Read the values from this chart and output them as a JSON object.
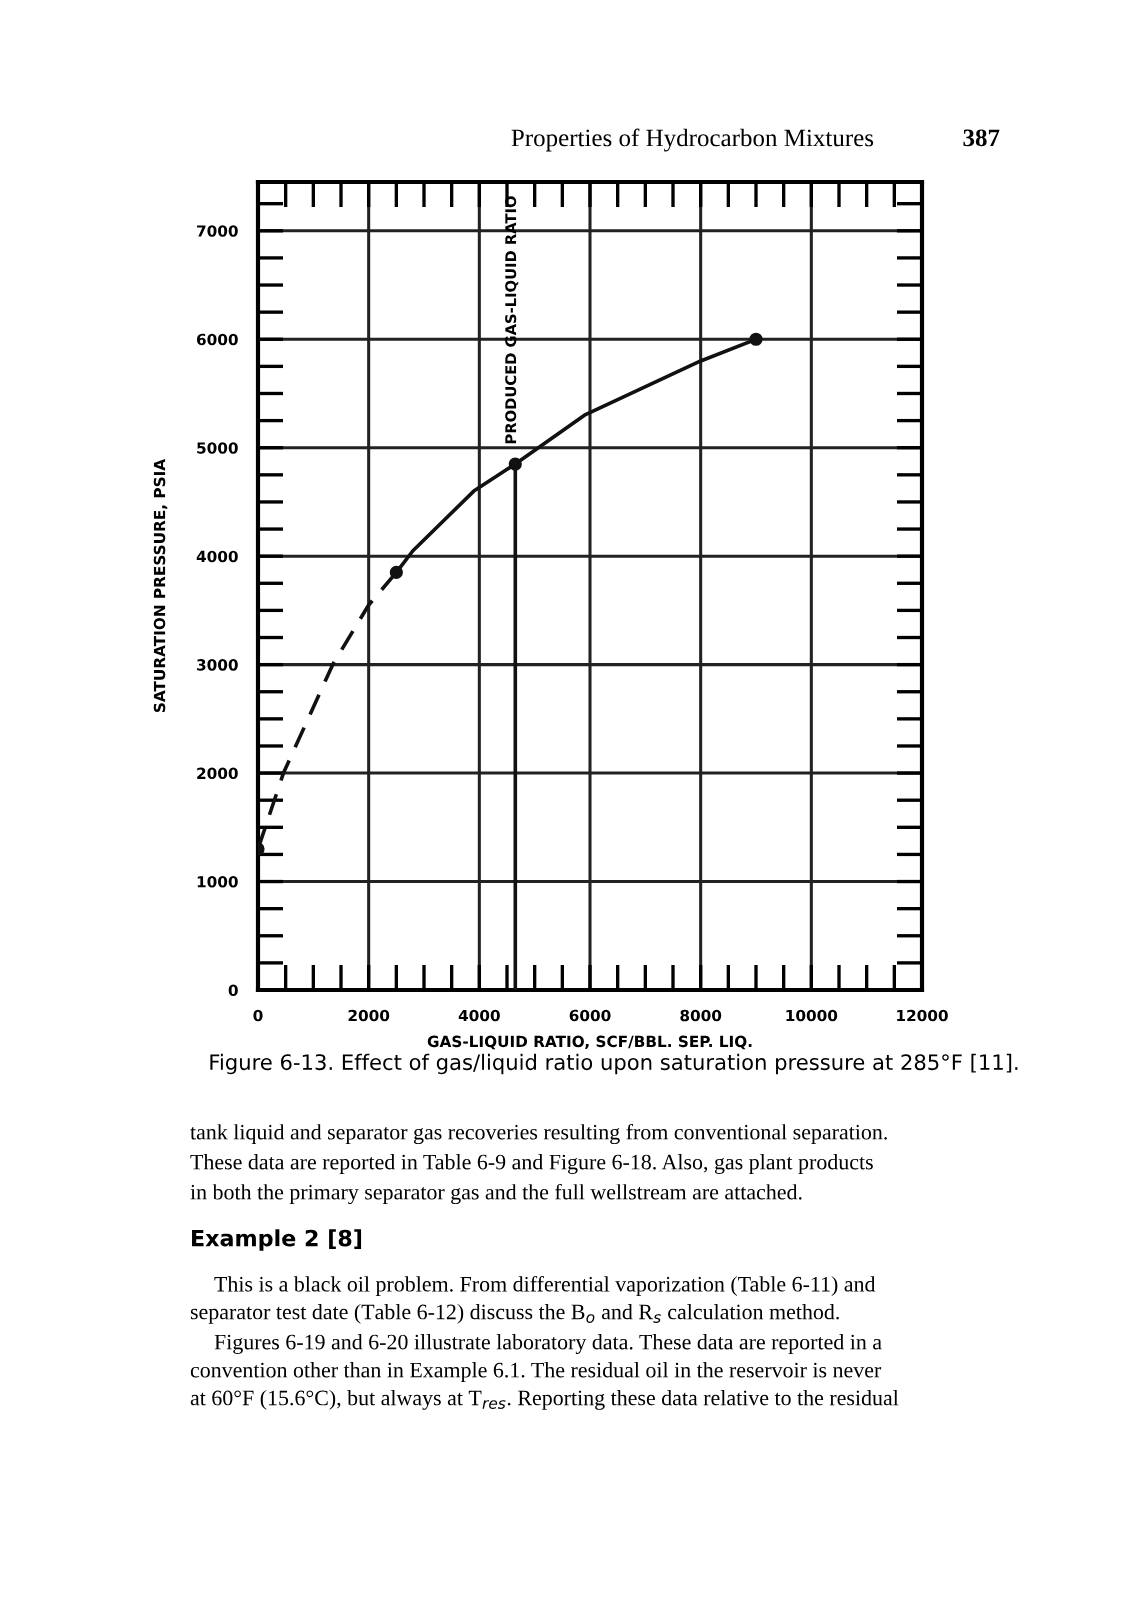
{
  "chart_data": {
    "type": "line",
    "title": "Figure 6-13. Effect of gas/liquid ratio upon saturation pressure at 285°F [11].",
    "xlabel": "GAS-LIQUID RATIO, SCF/BBL. SEP. LIQ.",
    "ylabel": "SATURATION PRESSURE, PSIA",
    "series": [
      {
        "line_style": "dashed",
        "color": "#111111",
        "x": [
          0,
          460,
          1350,
          2000,
          2500
        ],
        "values": [
          1300,
          2000,
          3000,
          3550,
          3850
        ]
      },
      {
        "line_style": "solid",
        "color": "#111111",
        "x": [
          2500,
          2800,
          3900,
          4650,
          5900,
          8000,
          9000
        ],
        "values": [
          3850,
          4050,
          4600,
          4850,
          5300,
          5800,
          6000
        ]
      },
      {
        "line_style": "solid",
        "color": "#111111",
        "x": [
          4650,
          4650
        ],
        "values": [
          0,
          4850
        ]
      },
      {
        "type": "scatter",
        "marker": "circle",
        "color": "#111111",
        "x": [
          0,
          2500,
          4650,
          9000
        ],
        "values": [
          1300,
          3850,
          4850,
          6000
        ]
      }
    ],
    "xlim": [
      0,
      12000
    ],
    "ylim": [
      0,
      7450
    ],
    "xticks": [
      0,
      {
        "value": 500,
        "label": null
      },
      {
        "value": 1000,
        "label": null
      },
      {
        "value": 1500,
        "label": null
      },
      2000,
      {
        "value": 2500,
        "label": null
      },
      {
        "value": 3000,
        "label": null
      },
      {
        "value": 3500,
        "label": null
      },
      4000,
      {
        "value": 4500,
        "label": null
      },
      {
        "value": 5000,
        "label": null
      },
      {
        "value": 5500,
        "label": null
      },
      6000,
      {
        "value": 6500,
        "label": null
      },
      {
        "value": 7000,
        "label": null
      },
      {
        "value": 7500,
        "label": null
      },
      8000,
      {
        "value": 8500,
        "label": null
      },
      {
        "value": 9000,
        "label": null
      },
      {
        "value": 9500,
        "label": null
      },
      10000,
      {
        "value": 10500,
        "label": null
      },
      {
        "value": 11000,
        "label": null
      },
      {
        "value": 11500,
        "label": null
      },
      12000
    ],
    "yticks": [
      0,
      {
        "value": 250,
        "label": null
      },
      {
        "value": 500,
        "label": null
      },
      {
        "value": 750,
        "label": null
      },
      1000,
      {
        "value": 1250,
        "label": null
      },
      {
        "value": 1500,
        "label": null
      },
      {
        "value": 1750,
        "label": null
      },
      2000,
      {
        "value": 2250,
        "label": null
      },
      {
        "value": 2500,
        "label": null
      },
      {
        "value": 2750,
        "label": null
      },
      3000,
      {
        "value": 3250,
        "label": null
      },
      {
        "value": 3500,
        "label": null
      },
      {
        "value": 3750,
        "label": null
      },
      4000,
      {
        "value": 4250,
        "label": null
      },
      {
        "value": 4500,
        "label": null
      },
      {
        "value": 4750,
        "label": null
      },
      5000,
      {
        "value": 5250,
        "label": null
      },
      {
        "value": 5500,
        "label": null
      },
      {
        "value": 5750,
        "label": null
      },
      6000,
      {
        "value": 6250,
        "label": null
      },
      {
        "value": 6500,
        "label": null
      },
      {
        "value": 6750,
        "label": null
      },
      7000,
      {
        "value": 7250,
        "label": null
      }
    ],
    "grid": "labeled",
    "annotations": [
      "PRODUCED GAS-LIQUID RATIO",
      "Properties of Hydrocarbon Mixtures",
      "387",
      "tank liquid and separator gas recoveries resulting from conventional separation.",
      "These data are reported in Table 6-9 and Figure 6-18. Also, gas plant products",
      "in both the primary separator gas and the full wellstream are attached.",
      "Example 2 [8]",
      "This is a black oil problem. From differential vaporization (Table 6-11) and",
      "separator test date (Table 6-12) discuss the B$_{o}$ and R$_{s}$ calculation method.",
      "Figures 6-19 and 6-20 illustrate laboratory data. These data are reported in a",
      "convention other than in Example 6.1. The residual oil in the reservoir is never",
      "at 60°F (15.6°C), but always at T$_{res}$. Reporting these data relative to the residual"
    ]
  }
}
